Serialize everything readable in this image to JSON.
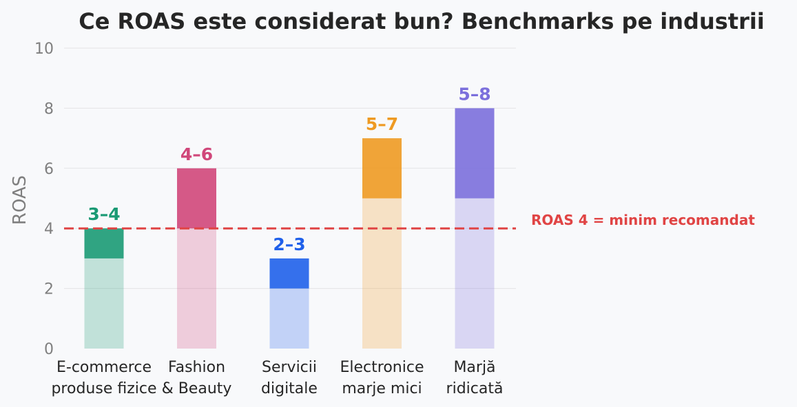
{
  "chart_data": {
    "type": "bar",
    "title": "Ce ROAS este considerat bun? Benchmarks pe industrii",
    "xlabel": "",
    "ylabel": "ROAS",
    "ylim": [
      0,
      10
    ],
    "yticks": [
      0,
      2,
      4,
      6,
      8,
      10
    ],
    "grid": true,
    "categories": [
      [
        "E-commerce",
        "produse fizice"
      ],
      [
        "Fashion",
        "& Beauty"
      ],
      [
        "Servicii",
        "digitale"
      ],
      [
        "Electronice",
        "marje mici"
      ],
      [
        "Marjă",
        "ridicată"
      ]
    ],
    "ranges": [
      {
        "low": 3,
        "high": 4,
        "label": "3–4",
        "color": "#1a9a74"
      },
      {
        "low": 4,
        "high": 6,
        "label": "4–6",
        "color": "#d0477a"
      },
      {
        "low": 2,
        "high": 3,
        "label": "2–3",
        "color": "#1f60ea"
      },
      {
        "low": 5,
        "high": 7,
        "label": "5–7",
        "color": "#ee9a22"
      },
      {
        "low": 5,
        "high": 8,
        "label": "5–8",
        "color": "#7b6fdc"
      }
    ],
    "reference_line": {
      "value": 4,
      "label": "ROAS 4 = minim recomandat",
      "color": "#e04444"
    }
  }
}
